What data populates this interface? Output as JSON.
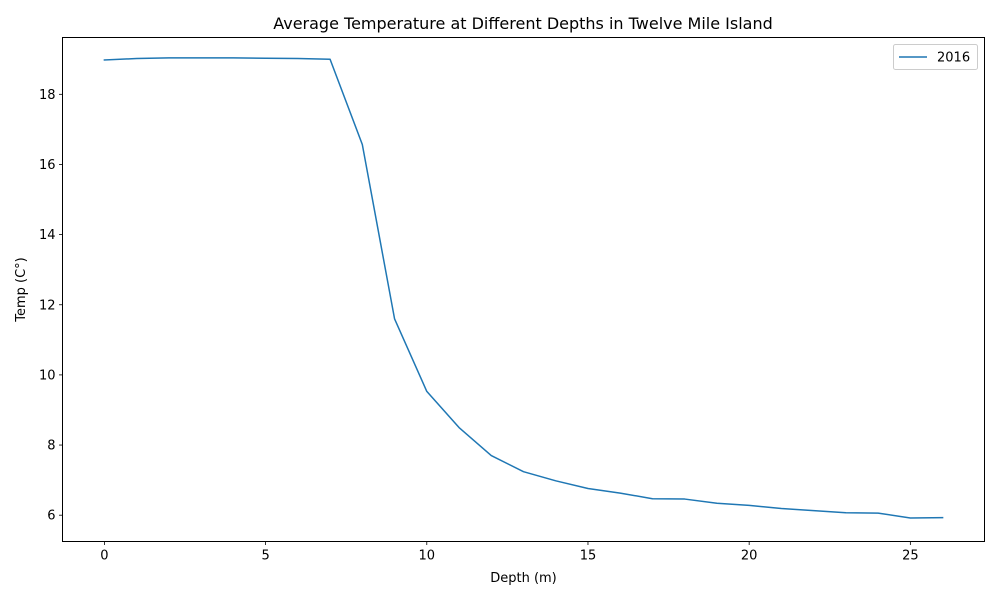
{
  "chart_data": {
    "type": "line",
    "title": "Average Temperature at Different Depths in Twelve Mile Island",
    "xlabel": "Depth (m)",
    "ylabel": "Temp (C°)",
    "xlim": [
      -1.3,
      27.3
    ],
    "ylim": [
      5.25,
      19.62
    ],
    "xticks": [
      0,
      5,
      10,
      15,
      20,
      25
    ],
    "yticks": [
      6,
      8,
      10,
      12,
      14,
      16,
      18
    ],
    "grid": false,
    "legend_position": "top-right",
    "x": [
      0,
      1,
      2,
      3,
      4,
      5,
      6,
      7,
      8,
      9,
      10,
      11,
      12,
      13,
      14,
      15,
      16,
      17,
      18,
      19,
      20,
      21,
      22,
      23,
      24,
      25,
      26
    ],
    "series": [
      {
        "name": "2016",
        "color": "#1f77b4",
        "values": [
          18.98,
          19.02,
          19.04,
          19.04,
          19.04,
          19.03,
          19.02,
          19.0,
          16.57,
          11.6,
          9.53,
          8.5,
          7.7,
          7.24,
          6.98,
          6.76,
          6.63,
          6.47,
          6.46,
          6.34,
          6.28,
          6.19,
          6.13,
          6.07,
          6.06,
          5.92,
          5.93
        ]
      }
    ]
  }
}
